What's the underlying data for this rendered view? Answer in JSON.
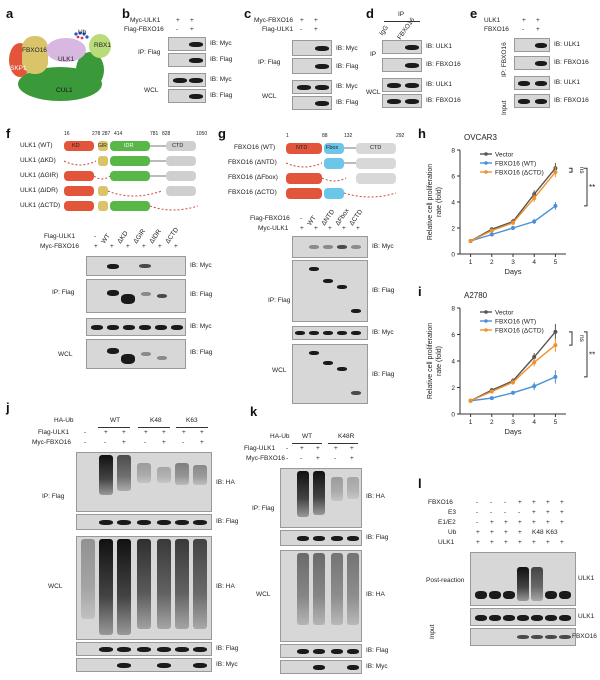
{
  "panels": {
    "a": {
      "letter": "a",
      "labels": {
        "fbxo16": "FBXO16",
        "skp1": "SKP1",
        "ulk1": "ULK1",
        "ub": "Ub",
        "rbx1": "RBX1",
        "cul1": "CUL1"
      },
      "colors": {
        "cul1": "#3a9a3a",
        "fbxo16": "#d9c46a",
        "skp1": "#e2553b",
        "ulk1": "#d8b8e0",
        "rbx1": "#b9dc7a",
        "ub": "#2255cc"
      }
    },
    "b": {
      "letter": "b",
      "rows": [
        {
          "label": "Myc-ULK1",
          "values": [
            "+",
            "+"
          ]
        },
        {
          "label": "Flag-FBXO16",
          "values": [
            "-",
            "+"
          ]
        }
      ],
      "ip": "IP: Flag",
      "wcl": "WCL",
      "ibs": [
        "IB: Myc",
        "IB: Flag",
        "IB: Myc",
        "IB: Flag"
      ]
    },
    "c": {
      "letter": "c",
      "rows": [
        {
          "label": "Myc-FBXO16",
          "values": [
            "+",
            "+"
          ]
        },
        {
          "label": "Flag-ULK1",
          "values": [
            "-",
            "+"
          ]
        }
      ],
      "ip": "IP: Flag",
      "wcl": "WCL",
      "ibs": [
        "IB: Myc",
        "IB: Flag",
        "IB: Myc",
        "IB: Flag"
      ]
    },
    "d": {
      "letter": "d",
      "ip_header": "IP",
      "lanes": [
        "IgG",
        "FBXO16"
      ],
      "ip": "IP",
      "wcl": "WCL",
      "ibs": [
        "IB: ULK1",
        "IB: FBXO16",
        "IB: ULK1",
        "IB: FBXO16"
      ]
    },
    "e": {
      "letter": "e",
      "rows": [
        {
          "label": "ULK1",
          "values": [
            "+",
            "+"
          ]
        },
        {
          "label": "FBXO16",
          "values": [
            "-",
            "+"
          ]
        }
      ],
      "ip": "IP: FBXO16",
      "input": "Input",
      "ibs": [
        "IB: ULK1",
        "IB: FBXO16",
        "IB: ULK1",
        "IB: FBXO16"
      ]
    },
    "f": {
      "letter": "f",
      "constructs": [
        "ULK1 (WT)",
        "ULK1 (ΔKD)",
        "ULK1 (ΔGIR)",
        "ULK1 (ΔIDR)",
        "ULK1 (ΔCTD)"
      ],
      "domains": {
        "kd": "KD",
        "gir": "GIR",
        "idr": "IDR",
        "ctd": "CTD"
      },
      "positions": [
        "16",
        "278",
        "287",
        "414",
        "781",
        "828",
        "1050"
      ],
      "rows": [
        {
          "label": "Flag-ULK1",
          "values": [
            "-",
            "WT",
            "ΔKD",
            "ΔGIR",
            "ΔIDR",
            "ΔCTD"
          ]
        },
        {
          "label": "Myc-FBXO16",
          "values": [
            "+",
            "+",
            "+",
            "+",
            "+",
            "+"
          ]
        }
      ],
      "ip": "IP: Flag",
      "wcl": "WCL",
      "ibs": [
        "IB: Myc",
        "IB: Flag",
        "IB: Myc",
        "IB: Flag"
      ]
    },
    "g": {
      "letter": "g",
      "constructs": [
        "FBXO16 (WT)",
        "FBXO16 (ΔNTD)",
        "FBXO16 (ΔFbox)",
        "FBXO16 (ΔCTD)"
      ],
      "domains": {
        "ntd": "NTD",
        "fbox": "Fbox",
        "ctd": "CTD"
      },
      "positions": [
        "1",
        "88",
        "132",
        "292"
      ],
      "rows": [
        {
          "label": "Flag-FBXO16",
          "values": [
            "-",
            "WT",
            "ΔNTD",
            "ΔFbox",
            "ΔCTD"
          ]
        },
        {
          "label": "Myc-ULK1",
          "values": [
            "+",
            "+",
            "+",
            "+",
            "+"
          ]
        }
      ],
      "ip": "IP: Flag",
      "wcl": "WCL",
      "ibs": [
        "IB: Myc",
        "IB: Flag",
        "IB: Myc",
        "IB: Flag"
      ]
    },
    "h": {
      "letter": "h"
    },
    "i": {
      "letter": "i"
    },
    "j": {
      "letter": "j",
      "header": "HA-Ub",
      "groups": [
        "WT",
        "K48",
        "K63"
      ],
      "rows": [
        {
          "label": "Flag-ULK1",
          "values": [
            "-",
            "+",
            "+",
            "+",
            "+",
            "+",
            "+"
          ]
        },
        {
          "label": "Myc-FBXO16",
          "values": [
            "-",
            "-",
            "+",
            "-",
            "+",
            "-",
            "+"
          ]
        }
      ],
      "ip": "IP: Flag",
      "wcl": "WCL",
      "ibs": [
        "IB: HA",
        "IB: Flag",
        "IB: HA",
        "IB: Flag",
        "IB: Myc"
      ]
    },
    "k": {
      "letter": "k",
      "header": "HA-Ub",
      "groups": [
        "WT",
        "K48R"
      ],
      "rows": [
        {
          "label": "Flag-ULK1",
          "values": [
            "-",
            "+",
            "+",
            "+",
            "+"
          ]
        },
        {
          "label": "Myc-FBXO16",
          "values": [
            "-",
            "-",
            "+",
            "-",
            "+"
          ]
        }
      ],
      "ip": "IP: Flag",
      "wcl": "WCL",
      "ibs": [
        "IB: HA",
        "IB: Flag",
        "IB: HA",
        "IB: Flag",
        "IB: Myc"
      ]
    },
    "l": {
      "letter": "l",
      "rows": [
        {
          "label": "FBXO16",
          "values": [
            "-",
            "-",
            "-",
            "+",
            "+",
            "+",
            "+"
          ]
        },
        {
          "label": "E3",
          "values": [
            "-",
            "-",
            "-",
            "-",
            "+",
            "+",
            "+"
          ]
        },
        {
          "label": "E1/E2",
          "values": [
            "-",
            "+",
            "+",
            "+",
            "+",
            "+",
            "+"
          ]
        },
        {
          "label": "Ub",
          "values": [
            "+",
            "+",
            "+",
            "+",
            "K48",
            "K63",
            ""
          ]
        },
        {
          "label": "ULK1",
          "values": [
            "+",
            "+",
            "+",
            "+",
            "+",
            "+",
            "+"
          ]
        }
      ],
      "post": "Post-reaction",
      "input": "Input",
      "ibs": [
        "ULK1",
        "ULK1",
        "FBXO16"
      ]
    }
  },
  "chart_data": [
    {
      "type": "line",
      "panel": "h",
      "title": "OVCAR3",
      "xlabel": "Days",
      "ylabel": "Relative cell proliferation rate (fold)",
      "x": [
        1,
        2,
        3,
        4,
        5
      ],
      "xlim": [
        0.5,
        5.5
      ],
      "ylim": [
        0,
        8
      ],
      "yticks": [
        0,
        2,
        4,
        6,
        8
      ],
      "series": [
        {
          "name": "Vector",
          "color": "#555555",
          "values": [
            1.0,
            1.9,
            2.5,
            4.6,
            6.6
          ],
          "err": [
            0.1,
            0.15,
            0.2,
            0.3,
            0.4
          ]
        },
        {
          "name": "FBXO16 (WT)",
          "color": "#4a90d9",
          "values": [
            1.0,
            1.5,
            2.0,
            2.5,
            3.7
          ],
          "err": [
            0.1,
            0.1,
            0.15,
            0.2,
            0.3
          ]
        },
        {
          "name": "FBXO16 (ΔCTD)",
          "color": "#f0922b",
          "values": [
            1.0,
            1.8,
            2.4,
            4.3,
            6.3
          ],
          "err": [
            0.1,
            0.15,
            0.2,
            0.3,
            0.4
          ]
        }
      ],
      "annotations": [
        "ns",
        "**"
      ]
    },
    {
      "type": "line",
      "panel": "i",
      "title": "A2780",
      "xlabel": "Days",
      "ylabel": "Relative cell proliferation rate (fold)",
      "x": [
        1,
        2,
        3,
        4,
        5
      ],
      "xlim": [
        0.5,
        5.5
      ],
      "ylim": [
        0,
        8
      ],
      "yticks": [
        0,
        2,
        4,
        6,
        8
      ],
      "series": [
        {
          "name": "Vector",
          "color": "#555555",
          "values": [
            1.0,
            1.8,
            2.5,
            4.3,
            6.2
          ],
          "err": [
            0.1,
            0.15,
            0.2,
            0.3,
            0.6
          ]
        },
        {
          "name": "FBXO16 (WT)",
          "color": "#4a90d9",
          "values": [
            1.0,
            1.2,
            1.6,
            2.1,
            2.8
          ],
          "err": [
            0.1,
            0.1,
            0.15,
            0.3,
            0.5
          ]
        },
        {
          "name": "FBXO16 (ΔCTD)",
          "color": "#f0922b",
          "values": [
            1.0,
            1.7,
            2.4,
            3.9,
            5.2
          ],
          "err": [
            0.1,
            0.15,
            0.2,
            0.3,
            0.5
          ]
        }
      ],
      "annotations": [
        "ns",
        "**"
      ]
    }
  ]
}
